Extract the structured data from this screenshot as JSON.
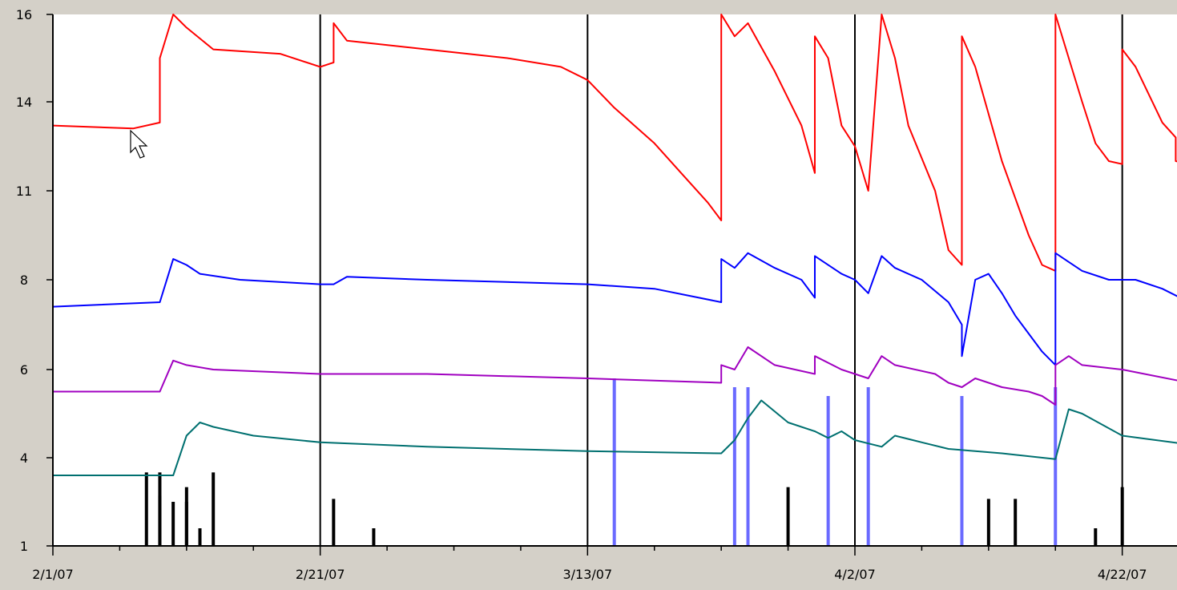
{
  "chart_data": {
    "type": "line",
    "title": "",
    "xlabel": "",
    "ylabel": "",
    "ylim": [
      1,
      16
    ],
    "xlim": [
      "2007-02-01",
      "2007-04-30"
    ],
    "y_ticks": [
      {
        "value": 1,
        "label": "1"
      },
      {
        "value": 4,
        "label": "4"
      },
      {
        "value": 6,
        "label": "6"
      },
      {
        "value": 8,
        "label": "8"
      },
      {
        "value": 11,
        "label": "11"
      },
      {
        "value": 14,
        "label": "14"
      },
      {
        "value": 16,
        "label": "16"
      }
    ],
    "x_ticks": [
      {
        "date": "2007-02-01",
        "label": "2/1/07"
      },
      {
        "date": "2007-02-21",
        "label": "2/21/07"
      },
      {
        "date": "2007-03-13",
        "label": "3/13/07"
      },
      {
        "date": "2007-04-02",
        "label": "4/2/07"
      },
      {
        "date": "2007-04-22",
        "label": "4/22/07"
      }
    ],
    "grid": "vertical lines at labeled date ticks",
    "legend": "none",
    "series": [
      {
        "color": "#ff0000",
        "points": [
          [
            "2007-02-01",
            13.2
          ],
          [
            "2007-02-07",
            13.1
          ],
          [
            "2007-02-09",
            13.3
          ],
          [
            "2007-02-09",
            15.0
          ],
          [
            "2007-02-10",
            16.0
          ],
          [
            "2007-02-11",
            15.7
          ],
          [
            "2007-02-13",
            15.2
          ],
          [
            "2007-02-18",
            15.1
          ],
          [
            "2007-02-21",
            14.8
          ],
          [
            "2007-02-22",
            14.9
          ],
          [
            "2007-02-22",
            15.8
          ],
          [
            "2007-02-23",
            15.4
          ],
          [
            "2007-03-01",
            15.2
          ],
          [
            "2007-03-07",
            15.0
          ],
          [
            "2007-03-11",
            14.8
          ],
          [
            "2007-03-13",
            14.5
          ],
          [
            "2007-03-15",
            13.8
          ],
          [
            "2007-03-18",
            12.6
          ],
          [
            "2007-03-20",
            11.6
          ],
          [
            "2007-03-22",
            10.6
          ],
          [
            "2007-03-23",
            10.0
          ],
          [
            "2007-03-23",
            16.0
          ],
          [
            "2007-03-24",
            15.5
          ],
          [
            "2007-03-25",
            15.8
          ],
          [
            "2007-03-27",
            14.7
          ],
          [
            "2007-03-29",
            13.2
          ],
          [
            "2007-03-30",
            11.6
          ],
          [
            "2007-03-30",
            15.5
          ],
          [
            "2007-03-31",
            15.0
          ],
          [
            "2007-04-01",
            13.2
          ],
          [
            "2007-04-02",
            12.5
          ],
          [
            "2007-04-03",
            11.0
          ],
          [
            "2007-04-04",
            16.0
          ],
          [
            "2007-04-05",
            15.0
          ],
          [
            "2007-04-06",
            13.2
          ],
          [
            "2007-04-08",
            11.0
          ],
          [
            "2007-04-09",
            9.0
          ],
          [
            "2007-04-10",
            8.5
          ],
          [
            "2007-04-10",
            15.5
          ],
          [
            "2007-04-11",
            14.8
          ],
          [
            "2007-04-13",
            12.0
          ],
          [
            "2007-04-15",
            9.5
          ],
          [
            "2007-04-16",
            8.5
          ],
          [
            "2007-04-17",
            8.3
          ],
          [
            "2007-04-17",
            16.0
          ],
          [
            "2007-04-18",
            15.0
          ],
          [
            "2007-04-19",
            14.0
          ],
          [
            "2007-04-20",
            12.6
          ],
          [
            "2007-04-21",
            12.0
          ],
          [
            "2007-04-22",
            11.9
          ],
          [
            "2007-04-22",
            15.2
          ],
          [
            "2007-04-23",
            14.8
          ],
          [
            "2007-04-25",
            13.3
          ],
          [
            "2007-04-26",
            12.8
          ],
          [
            "2007-04-26",
            12.0
          ],
          [
            "2007-04-27",
            11.9
          ]
        ]
      },
      {
        "color": "#0000ff",
        "points": [
          [
            "2007-02-01",
            7.4
          ],
          [
            "2007-02-09",
            7.5
          ],
          [
            "2007-02-09",
            7.5
          ],
          [
            "2007-02-10",
            8.7
          ],
          [
            "2007-02-11",
            8.5
          ],
          [
            "2007-02-12",
            8.2
          ],
          [
            "2007-02-15",
            8.0
          ],
          [
            "2007-02-21",
            7.9
          ],
          [
            "2007-02-22",
            7.9
          ],
          [
            "2007-02-23",
            8.1
          ],
          [
            "2007-03-01",
            8.0
          ],
          [
            "2007-03-13",
            7.9
          ],
          [
            "2007-03-18",
            7.8
          ],
          [
            "2007-03-23",
            7.5
          ],
          [
            "2007-03-23",
            8.7
          ],
          [
            "2007-03-24",
            8.4
          ],
          [
            "2007-03-25",
            8.9
          ],
          [
            "2007-03-27",
            8.4
          ],
          [
            "2007-03-29",
            8.0
          ],
          [
            "2007-03-30",
            7.6
          ],
          [
            "2007-03-30",
            8.8
          ],
          [
            "2007-04-01",
            8.2
          ],
          [
            "2007-04-02",
            8.0
          ],
          [
            "2007-04-03",
            7.7
          ],
          [
            "2007-04-04",
            8.8
          ],
          [
            "2007-04-05",
            8.4
          ],
          [
            "2007-04-07",
            8.0
          ],
          [
            "2007-04-09",
            7.5
          ],
          [
            "2007-04-10",
            7.0
          ],
          [
            "2007-04-10",
            6.3
          ],
          [
            "2007-04-11",
            8.0
          ],
          [
            "2007-04-12",
            8.2
          ],
          [
            "2007-04-13",
            7.7
          ],
          [
            "2007-04-14",
            7.2
          ],
          [
            "2007-04-16",
            6.4
          ],
          [
            "2007-04-17",
            6.1
          ],
          [
            "2007-04-17",
            8.9
          ],
          [
            "2007-04-18",
            8.6
          ],
          [
            "2007-04-19",
            8.3
          ],
          [
            "2007-04-21",
            8.0
          ],
          [
            "2007-04-23",
            8.0
          ],
          [
            "2007-04-25",
            7.8
          ],
          [
            "2007-04-27",
            7.5
          ]
        ]
      },
      {
        "color": "#a000c0",
        "points": [
          [
            "2007-02-01",
            5.5
          ],
          [
            "2007-02-09",
            5.5
          ],
          [
            "2007-02-10",
            6.2
          ],
          [
            "2007-02-11",
            6.1
          ],
          [
            "2007-02-13",
            6.0
          ],
          [
            "2007-02-21",
            5.9
          ],
          [
            "2007-03-01",
            5.9
          ],
          [
            "2007-03-13",
            5.8
          ],
          [
            "2007-03-23",
            5.7
          ],
          [
            "2007-03-23",
            6.1
          ],
          [
            "2007-03-24",
            6.0
          ],
          [
            "2007-03-25",
            6.5
          ],
          [
            "2007-03-27",
            6.1
          ],
          [
            "2007-03-30",
            5.9
          ],
          [
            "2007-03-30",
            6.3
          ],
          [
            "2007-04-01",
            6.0
          ],
          [
            "2007-04-03",
            5.8
          ],
          [
            "2007-04-04",
            6.3
          ],
          [
            "2007-04-05",
            6.1
          ],
          [
            "2007-04-08",
            5.9
          ],
          [
            "2007-04-09",
            5.7
          ],
          [
            "2007-04-10",
            5.6
          ],
          [
            "2007-04-11",
            5.8
          ],
          [
            "2007-04-13",
            5.6
          ],
          [
            "2007-04-15",
            5.5
          ],
          [
            "2007-04-16",
            5.4
          ],
          [
            "2007-04-17",
            5.2
          ],
          [
            "2007-04-17",
            6.1
          ],
          [
            "2007-04-18",
            6.3
          ],
          [
            "2007-04-19",
            6.1
          ],
          [
            "2007-04-22",
            6.0
          ],
          [
            "2007-04-27",
            5.7
          ]
        ]
      },
      {
        "color": "#007070",
        "points": [
          [
            "2007-02-01",
            3.4
          ],
          [
            "2007-02-09",
            3.4
          ],
          [
            "2007-02-10",
            3.4
          ],
          [
            "2007-02-11",
            4.5
          ],
          [
            "2007-02-12",
            4.8
          ],
          [
            "2007-02-13",
            4.7
          ],
          [
            "2007-02-16",
            4.5
          ],
          [
            "2007-02-21",
            4.35
          ],
          [
            "2007-03-01",
            4.25
          ],
          [
            "2007-03-13",
            4.15
          ],
          [
            "2007-03-23",
            4.1
          ],
          [
            "2007-03-24",
            4.4
          ],
          [
            "2007-03-25",
            4.9
          ],
          [
            "2007-03-26",
            5.3
          ],
          [
            "2007-03-28",
            4.8
          ],
          [
            "2007-03-30",
            4.6
          ],
          [
            "2007-03-31",
            4.45
          ],
          [
            "2007-04-01",
            4.6
          ],
          [
            "2007-04-02",
            4.4
          ],
          [
            "2007-04-04",
            4.25
          ],
          [
            "2007-04-05",
            4.5
          ],
          [
            "2007-04-07",
            4.35
          ],
          [
            "2007-04-09",
            4.2
          ],
          [
            "2007-04-13",
            4.1
          ],
          [
            "2007-04-17",
            3.95
          ],
          [
            "2007-04-18",
            5.1
          ],
          [
            "2007-04-19",
            5.0
          ],
          [
            "2007-04-22",
            4.5
          ],
          [
            "2007-04-27",
            4.3
          ]
        ]
      }
    ],
    "bars": [
      {
        "color": "#6a6aff",
        "items": [
          {
            "date": "2007-03-15",
            "value": 5.8
          },
          {
            "date": "2007-03-24",
            "value": 5.6
          },
          {
            "date": "2007-03-25",
            "value": 5.6
          },
          {
            "date": "2007-03-31",
            "value": 5.4
          },
          {
            "date": "2007-04-03",
            "value": 5.6
          },
          {
            "date": "2007-04-10",
            "value": 5.4
          },
          {
            "date": "2007-04-17",
            "value": 5.6
          }
        ]
      },
      {
        "color": "#000000",
        "items": [
          {
            "date": "2007-02-08",
            "value": 3.5
          },
          {
            "date": "2007-02-09",
            "value": 2.7
          },
          {
            "date": "2007-02-09",
            "value": 3.5
          },
          {
            "date": "2007-02-10",
            "value": 2.5
          },
          {
            "date": "2007-02-11",
            "value": 3.0
          },
          {
            "date": "2007-02-11",
            "value": 2.5
          },
          {
            "date": "2007-02-12",
            "value": 1.6
          },
          {
            "date": "2007-02-13",
            "value": 3.5
          },
          {
            "date": "2007-02-22",
            "value": 2.6
          },
          {
            "date": "2007-02-25",
            "value": 1.6
          },
          {
            "date": "2007-03-28",
            "value": 3.0
          },
          {
            "date": "2007-04-12",
            "value": 2.6
          },
          {
            "date": "2007-04-14",
            "value": 2.6
          },
          {
            "date": "2007-04-20",
            "value": 1.6
          },
          {
            "date": "2007-04-22",
            "value": 3.0
          }
        ]
      }
    ]
  }
}
